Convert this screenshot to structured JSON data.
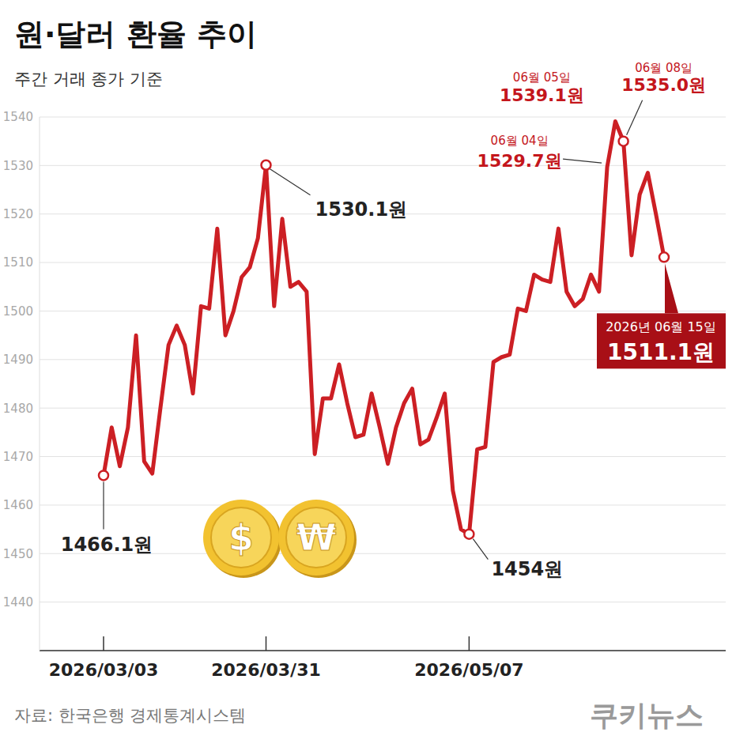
{
  "chart_data": {
    "type": "line",
    "title": "원·달러 환율 추이",
    "subtitle": "주간 거래 종가 기준",
    "source": "자료: 한국은행 경제통계시스템",
    "brand": "쿠키뉴스",
    "icons": [
      "$",
      "₩"
    ],
    "categories": [
      "2026/03/03",
      null,
      null,
      null,
      null,
      null,
      null,
      null,
      null,
      null,
      null,
      null,
      null,
      null,
      null,
      null,
      null,
      null,
      null,
      null,
      "2026/03/31",
      null,
      null,
      null,
      null,
      null,
      null,
      null,
      null,
      null,
      null,
      null,
      null,
      null,
      null,
      null,
      null,
      null,
      null,
      null,
      null,
      null,
      null,
      null,
      null,
      "2026/05/07",
      null,
      null,
      null,
      null,
      null,
      null,
      null,
      null,
      null,
      null,
      null,
      null,
      null,
      null,
      null,
      null,
      null,
      null,
      null,
      null,
      null,
      null,
      null,
      null
    ],
    "values": [
      1466.1,
      1476,
      1468,
      1476,
      1495,
      1469,
      1466.5,
      1480,
      1493,
      1497,
      1493,
      1483,
      1501,
      1500.5,
      1517,
      1495,
      1500,
      1507,
      1509,
      1515,
      1530.1,
      1501,
      1519,
      1505,
      1506,
      1504,
      1470.5,
      1482,
      1482,
      1489,
      1481,
      1474,
      1474.5,
      1483,
      1476,
      1468.5,
      1476,
      1481,
      1484,
      1472.5,
      1473.5,
      1478,
      1483,
      1463,
      1455,
      1454,
      1471.5,
      1472,
      1489.5,
      1490.5,
      1491,
      1500.5,
      1500,
      1507.5,
      1506.5,
      1506,
      1517,
      1504,
      1501,
      1502.5,
      1507.5,
      1504,
      1529.7,
      1539.1,
      1535.0,
      1511.5,
      1524,
      1528.5,
      1520,
      1511.1
    ],
    "color": "#cc1f24",
    "ylim": [
      1430,
      1540
    ],
    "yticks": [
      1440,
      1450,
      1460,
      1470,
      1480,
      1490,
      1500,
      1510,
      1520,
      1530,
      1540
    ],
    "grid": true,
    "annotations": [
      {
        "label": "1466.1원",
        "value": 1466.1,
        "color": "#222222",
        "marker": "circle"
      },
      {
        "label": "1530.1원",
        "value": 1530.1,
        "color": "#222222",
        "marker": "circle"
      },
      {
        "label": "1454원",
        "value": 1454,
        "color": "#222222",
        "marker": "circle"
      },
      {
        "date": "06월 04일",
        "label": "1529.7원",
        "value": 1529.7,
        "color": "#c4161c"
      },
      {
        "date": "06월 05일",
        "label": "1539.1원",
        "value": 1539.1,
        "color": "#c4161c"
      },
      {
        "date": "06월 08일",
        "label": "1535.0원",
        "value": 1535.0,
        "color": "#c4161c",
        "marker": "circle"
      },
      {
        "date": "2026년 06월 15일",
        "label": "1511.1원",
        "value": 1511.1,
        "color": "#a80f16",
        "marker": "circle"
      }
    ]
  }
}
